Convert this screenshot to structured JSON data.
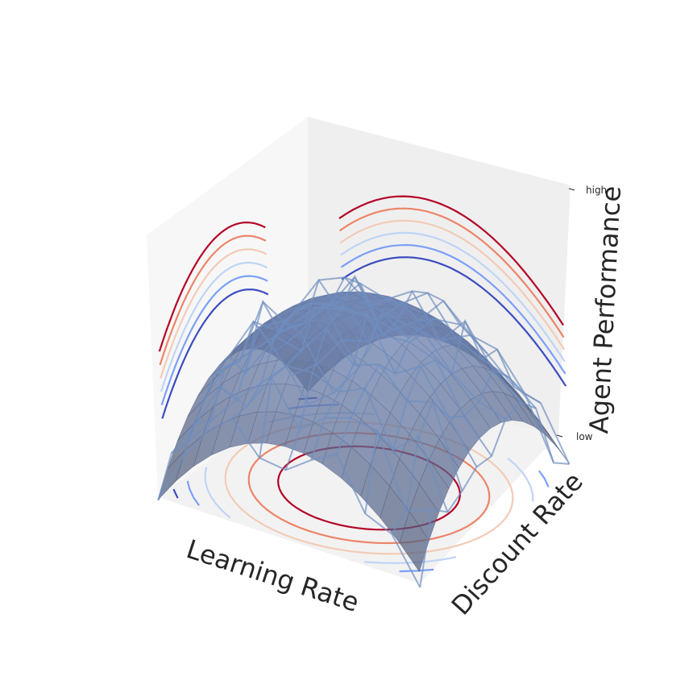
{
  "chart_data": {
    "type": "surface3d",
    "title": "",
    "xlabel": "Learning Rate",
    "ylabel": "Discount Rate",
    "zlabel": "Agent Performance",
    "z_ticks": [
      {
        "value": 0,
        "label": "low"
      },
      {
        "value": 1,
        "label": "high"
      }
    ],
    "x_range": [
      0,
      1
    ],
    "y_range": [
      0,
      1
    ],
    "z_range": [
      0,
      1
    ],
    "surface": {
      "function": "inverted paraboloid peaking near the center of the learning-rate / discount-rate plane",
      "color": "#4a6fa5",
      "style": "semi-transparent smooth surface with jittered wireframe overlay"
    },
    "contour_colormap": "coolwarm",
    "contour_levels": [
      0.05,
      0.2,
      0.35,
      0.5,
      0.65,
      0.8
    ],
    "contour_colors": [
      "#3b4cc0",
      "#7b9ff9",
      "#c0d4f5",
      "#f2cbb7",
      "#ee8468",
      "#b40426"
    ],
    "projections": [
      "floor (z)",
      "left wall (x)",
      "right wall (y)"
    ],
    "grid": false,
    "pane_colors": {
      "floor": "#f2f2f2",
      "left_wall": "#f7f7f7",
      "right_wall": "#efefef"
    }
  }
}
